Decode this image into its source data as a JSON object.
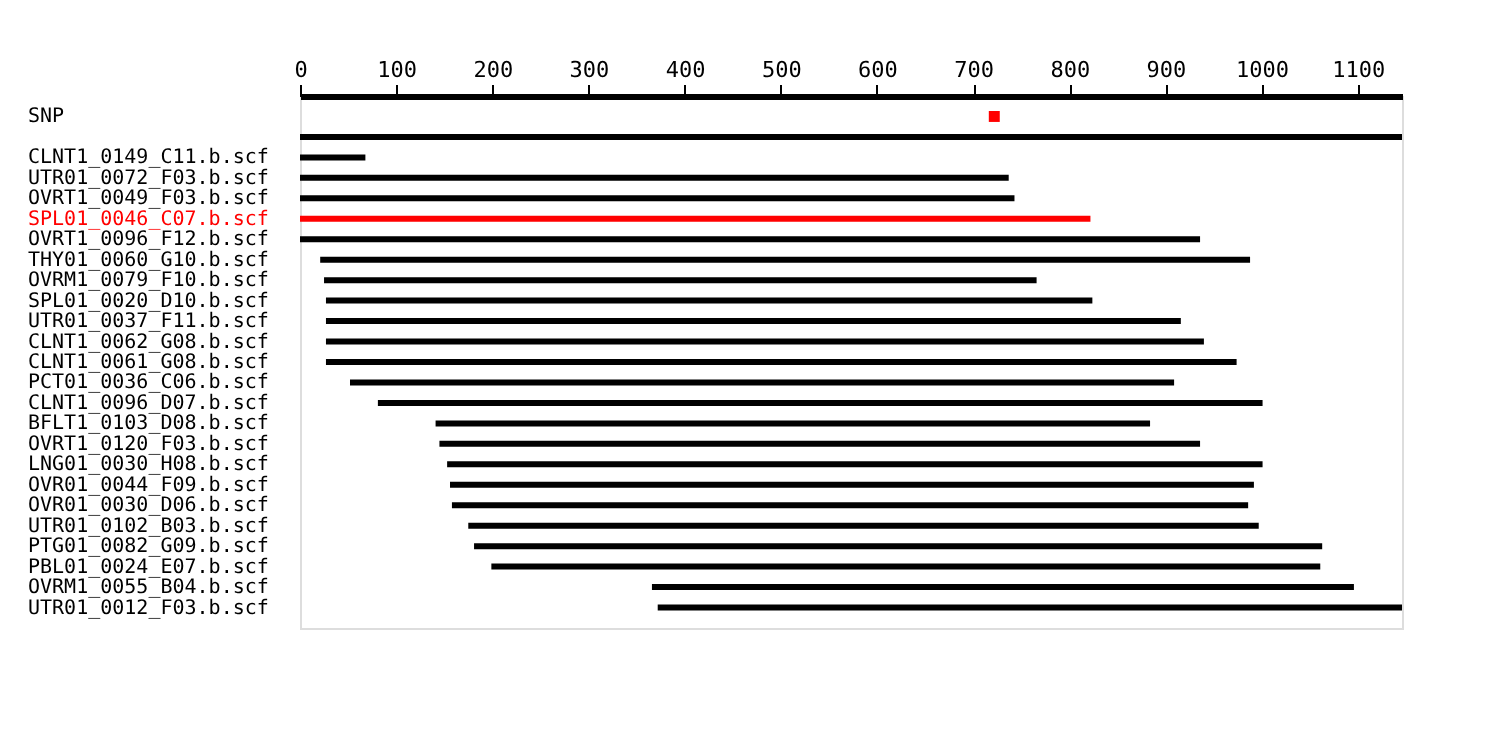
{
  "chart_data": {
    "type": "bar",
    "orientation": "horizontal",
    "xlim": [
      0,
      1146
    ],
    "xticks": [
      0,
      100,
      200,
      300,
      400,
      500,
      600,
      700,
      800,
      900,
      1000,
      1100
    ],
    "grid": false,
    "categories": [
      "SNP",
      null,
      "CLNT1_0149_C11.b.scf",
      "UTR01_0072_F03.b.scf",
      "OVRT1_0049_F03.b.scf",
      "SPL01_0046_C07.b.scf",
      "OVRT1_0096_F12.b.scf",
      "THY01_0060_G10.b.scf",
      "OVRM1_0079_F10.b.scf",
      "SPL01_0020_D10.b.scf",
      "UTR01_0037_F11.b.scf",
      "CLNT1_0062_G08.b.scf",
      "CLNT1_0061_G08.b.scf",
      "PCT01_0036_C06.b.scf",
      "CLNT1_0096_D07.b.scf",
      "BFLT1_0103_D08.b.scf",
      "OVRT1_0120_F03.b.scf",
      "LNG01_0030_H08.b.scf",
      "OVR01_0044_F09.b.scf",
      "OVR01_0030_D06.b.scf",
      "UTR01_0102_B03.b.scf",
      "PTG01_0082_G09.b.scf",
      "PBL01_0024_E07.b.scf",
      "OVRM1_0055_B04.b.scf",
      "UTR01_0012_F03.b.scf"
    ],
    "series": [
      {
        "base": [
          null,
          0,
          0,
          0,
          0,
          0,
          0,
          21,
          25,
          27,
          27,
          27,
          27,
          52,
          81,
          141,
          145,
          153,
          156,
          158,
          175,
          181,
          199,
          366,
          372
        ],
        "values": [
          null,
          1146,
          68,
          737,
          743,
          822,
          936,
          967,
          741,
          797,
          889,
          913,
          947,
          857,
          920,
          743,
          791,
          848,
          836,
          828,
          822,
          882,
          862,
          730,
          774
        ],
        "colors": [
          null,
          "#000000",
          "#000000",
          "#000000",
          "#000000",
          "#ff0000",
          "#000000",
          "#000000",
          "#000000",
          "#000000",
          "#000000",
          "#000000",
          "#000000",
          "#000000",
          "#000000",
          "#000000",
          "#000000",
          "#000000",
          "#000000",
          "#000000",
          "#000000",
          "#000000",
          "#000000",
          "#000000",
          "#000000"
        ]
      },
      {
        "type": "scatter",
        "marker": "square",
        "color": "#ff0000",
        "values": [
          722,
          null,
          null,
          null,
          null,
          null,
          null,
          null,
          null,
          null,
          null,
          null,
          null,
          null,
          null,
          null,
          null,
          null,
          null,
          null,
          null,
          null,
          null,
          null,
          null
        ]
      }
    ]
  }
}
